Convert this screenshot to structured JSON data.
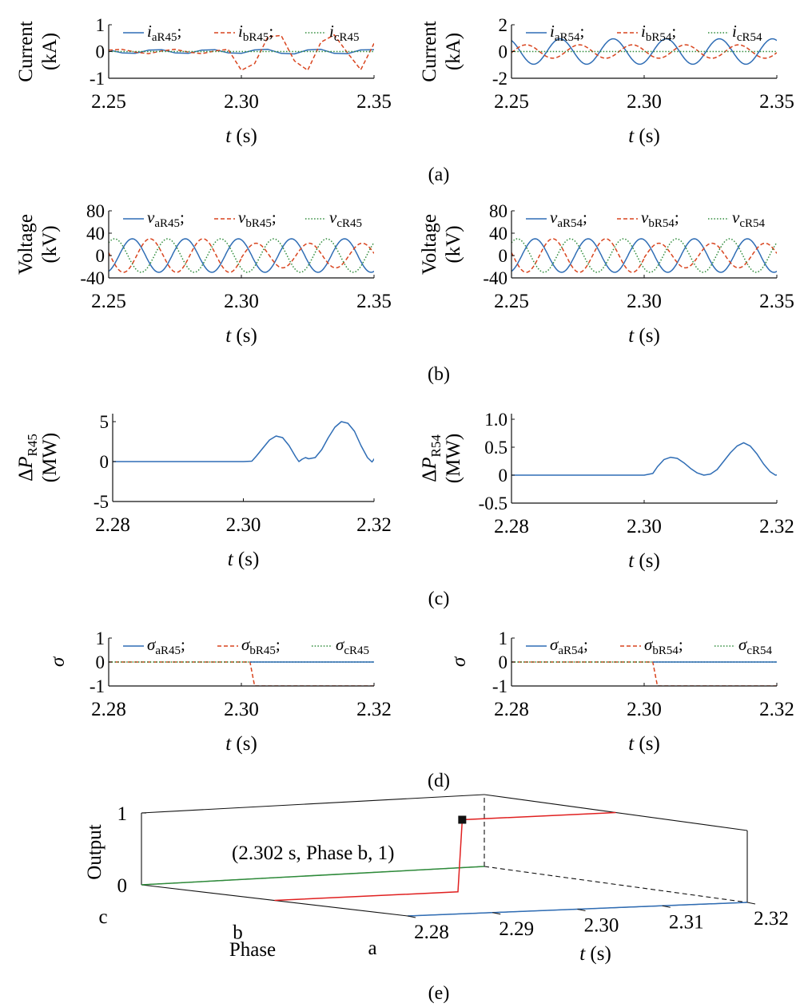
{
  "panel_captions": [
    "(a)",
    "(b)",
    "(c)",
    "(d)",
    "(e)"
  ],
  "colors": {
    "a": "#2f6db5",
    "b": "#d9441e",
    "c": "#2e8b3a",
    "red3d": "#e02020",
    "axis": "#111111"
  },
  "chart_data": [
    {
      "id": "a_left",
      "type": "line",
      "panel": "(a)",
      "ylabel": [
        "Current",
        "(kA)"
      ],
      "xlabel_var": "t",
      "xlabel_unit": "(s)",
      "xlim": [
        2.25,
        2.35
      ],
      "ylim": [
        -1,
        1
      ],
      "xticks": [
        2.25,
        2.3,
        2.35
      ],
      "xtick_labels": [
        "2.25",
        "2.30",
        "2.35"
      ],
      "yticks": [
        1,
        0,
        -1
      ],
      "ytick_labels": [
        "1",
        "0",
        "-1"
      ],
      "legend": [
        {
          "var": "i",
          "sub": "aR45",
          "sep": ";",
          "style": "solid",
          "color": "#2f6db5"
        },
        {
          "var": "i",
          "sub": "bR45",
          "sep": ";",
          "style": "dashed",
          "color": "#d9441e"
        },
        {
          "var": "i",
          "sub": "cR45",
          "sep": "",
          "style": "dotted",
          "color": "#2e8b3a"
        }
      ],
      "series": [
        {
          "phase": "a",
          "style": "solid",
          "color": "#2f6db5",
          "x": [
            2.25,
            2.255,
            2.26,
            2.265,
            2.27,
            2.275,
            2.28,
            2.285,
            2.29,
            2.295,
            2.3,
            2.305,
            2.31,
            2.315,
            2.32,
            2.325,
            2.33,
            2.335,
            2.34,
            2.345,
            2.35
          ],
          "y": [
            0.06,
            -0.05,
            -0.07,
            0.05,
            0.07,
            -0.05,
            -0.07,
            0.05,
            0.07,
            -0.05,
            -0.07,
            0.06,
            0.08,
            -0.07,
            -0.09,
            0.06,
            0.08,
            -0.07,
            -0.08,
            0.06,
            0.07
          ]
        },
        {
          "phase": "b",
          "style": "dashed",
          "color": "#d9441e",
          "x": [
            2.25,
            2.255,
            2.26,
            2.265,
            2.27,
            2.275,
            2.28,
            2.285,
            2.29,
            2.295,
            2.3,
            2.305,
            2.31,
            2.315,
            2.32,
            2.325,
            2.33,
            2.335,
            2.34,
            2.345,
            2.35
          ],
          "y": [
            0.05,
            0.08,
            -0.02,
            -0.08,
            0.02,
            0.08,
            -0.02,
            -0.08,
            0.02,
            0.08,
            -0.7,
            -0.45,
            0.55,
            0.6,
            -0.35,
            -0.7,
            0.35,
            0.62,
            -0.05,
            -0.68,
            0.3
          ]
        },
        {
          "phase": "c",
          "style": "dotted",
          "color": "#2e8b3a",
          "x": [
            2.25,
            2.3,
            2.35
          ],
          "y": [
            0.0,
            0.0,
            0.0
          ]
        }
      ]
    },
    {
      "id": "a_right",
      "type": "line",
      "panel": "(a)",
      "ylabel": [
        "Current",
        "(kA)"
      ],
      "xlabel_var": "t",
      "xlabel_unit": "(s)",
      "xlim": [
        2.25,
        2.35
      ],
      "ylim": [
        -2,
        2
      ],
      "xticks": [
        2.25,
        2.3,
        2.35
      ],
      "xtick_labels": [
        "2.25",
        "2.30",
        "2.35"
      ],
      "yticks": [
        2,
        0,
        -2
      ],
      "ytick_labels": [
        "2",
        "0",
        "-2"
      ],
      "legend": [
        {
          "var": "i",
          "sub": "aR54",
          "sep": ";",
          "style": "solid",
          "color": "#2f6db5"
        },
        {
          "var": "i",
          "sub": "bR54",
          "sep": ";",
          "style": "dashed",
          "color": "#d9441e"
        },
        {
          "var": "i",
          "sub": "cR54",
          "sep": "",
          "style": "dotted",
          "color": "#2e8b3a"
        }
      ],
      "series": [
        {
          "phase": "a",
          "style": "solid",
          "color": "#2f6db5",
          "func": "sine",
          "amp": 0.95,
          "freq": 50,
          "phase_deg": -60,
          "x_start": 2.25,
          "x_end": 2.35
        },
        {
          "phase": "b",
          "style": "dashed",
          "color": "#d9441e",
          "func": "sine",
          "amp": 0.5,
          "freq": 50,
          "phase_deg": 170,
          "x_start": 2.25,
          "x_end": 2.35
        },
        {
          "phase": "c",
          "style": "dotted",
          "color": "#2e8b3a",
          "x": [
            2.25,
            2.35
          ],
          "y": [
            0.0,
            0.0
          ]
        }
      ]
    },
    {
      "id": "b_left",
      "type": "line",
      "panel": "(b)",
      "ylabel": [
        "Voltage",
        "(kV)"
      ],
      "xlabel_var": "t",
      "xlabel_unit": "(s)",
      "xlim": [
        2.25,
        2.35
      ],
      "ylim": [
        -40,
        80
      ],
      "xticks": [
        2.25,
        2.3,
        2.35
      ],
      "xtick_labels": [
        "2.25",
        "2.30",
        "2.35"
      ],
      "yticks": [
        80,
        40,
        0,
        -40
      ],
      "ytick_labels": [
        "80",
        "40",
        "0",
        "-40"
      ],
      "legend": [
        {
          "var": "v",
          "sub": "aR45",
          "sep": ";",
          "style": "solid",
          "color": "#2f6db5"
        },
        {
          "var": "v",
          "sub": "bR45",
          "sep": ";",
          "style": "dashed",
          "color": "#d9441e"
        },
        {
          "var": "v",
          "sub": "cR45",
          "sep": "",
          "style": "dotted",
          "color": "#2e8b3a"
        }
      ],
      "series": [
        {
          "phase": "a",
          "style": "solid",
          "color": "#2f6db5",
          "func": "sine",
          "amp": 30,
          "freq": 50,
          "phase_deg": 110,
          "x_start": 2.25,
          "x_end": 2.35
        },
        {
          "phase": "b",
          "style": "dashed",
          "color": "#d9441e",
          "func": "sine",
          "amp": 30,
          "freq": 50,
          "phase_deg": -10,
          "x_start": 2.25,
          "x_end": 2.3
        },
        {
          "phase": "b",
          "style": "dashed",
          "color": "#d9441e",
          "func": "sine",
          "amp": 22,
          "freq": 50,
          "phase_deg": -10,
          "x_start": 2.3,
          "x_end": 2.35
        },
        {
          "phase": "c",
          "style": "dotted",
          "color": "#2e8b3a",
          "func": "sine",
          "amp": 30,
          "freq": 50,
          "phase_deg": -130,
          "x_start": 2.25,
          "x_end": 2.35
        }
      ]
    },
    {
      "id": "b_right",
      "type": "line",
      "panel": "(b)",
      "ylabel": [
        "Voltage",
        "(kV)"
      ],
      "xlabel_var": "t",
      "xlabel_unit": "(s)",
      "xlim": [
        2.25,
        2.35
      ],
      "ylim": [
        -40,
        80
      ],
      "xticks": [
        2.25,
        2.3,
        2.35
      ],
      "xtick_labels": [
        "2.25",
        "2.30",
        "2.35"
      ],
      "yticks": [
        80,
        40,
        0,
        -40
      ],
      "ytick_labels": [
        "80",
        "40",
        "0",
        "-40"
      ],
      "legend": [
        {
          "var": "v",
          "sub": "aR54",
          "sep": ";",
          "style": "solid",
          "color": "#2f6db5"
        },
        {
          "var": "v",
          "sub": "bR54",
          "sep": ";",
          "style": "dashed",
          "color": "#d9441e"
        },
        {
          "var": "v",
          "sub": "cR54",
          "sep": "",
          "style": "dotted",
          "color": "#2e8b3a"
        }
      ],
      "series": [
        {
          "phase": "a",
          "style": "solid",
          "color": "#2f6db5",
          "func": "sine",
          "amp": 30,
          "freq": 50,
          "phase_deg": 110,
          "x_start": 2.25,
          "x_end": 2.35
        },
        {
          "phase": "b",
          "style": "dashed",
          "color": "#d9441e",
          "func": "sine",
          "amp": 30,
          "freq": 50,
          "phase_deg": -10,
          "x_start": 2.25,
          "x_end": 2.3
        },
        {
          "phase": "b",
          "style": "dashed",
          "color": "#d9441e",
          "func": "sine",
          "amp": 22,
          "freq": 50,
          "phase_deg": -10,
          "x_start": 2.3,
          "x_end": 2.35
        },
        {
          "phase": "c",
          "style": "dotted",
          "color": "#2e8b3a",
          "func": "sine",
          "amp": 30,
          "freq": 50,
          "phase_deg": -130,
          "x_start": 2.25,
          "x_end": 2.35
        }
      ]
    },
    {
      "id": "c_left",
      "type": "line",
      "panel": "(c)",
      "ylabel_delta": "ΔP",
      "ylabel_sub": "R45",
      "ylabel_unit": "(MW)",
      "xlabel_var": "t",
      "xlabel_unit": "(s)",
      "xlim": [
        2.28,
        2.32
      ],
      "ylim": [
        -5,
        6
      ],
      "xticks": [
        2.28,
        2.3,
        2.32
      ],
      "xtick_labels": [
        "2.28",
        "2.30",
        "2.32"
      ],
      "yticks": [
        5,
        0,
        -5
      ],
      "ytick_labels": [
        "5",
        "0",
        "-5"
      ],
      "series": [
        {
          "phase": "a",
          "style": "solid",
          "color": "#2f6db5",
          "x": [
            2.28,
            2.29,
            2.3,
            2.3013,
            2.302,
            2.303,
            2.304,
            2.305,
            2.306,
            2.307,
            2.308,
            2.3085,
            2.309,
            2.3095,
            2.31,
            2.311,
            2.312,
            2.313,
            2.314,
            2.315,
            2.316,
            2.317,
            2.318,
            2.319,
            2.3197,
            2.3205
          ],
          "y": [
            0,
            0,
            0,
            0.05,
            0.7,
            1.7,
            2.7,
            3.2,
            3.0,
            2.0,
            0.6,
            0.0,
            0.3,
            0.5,
            0.35,
            0.5,
            1.5,
            3.0,
            4.3,
            5.0,
            4.8,
            3.8,
            2.0,
            0.5,
            -0.05,
            0.9
          ]
        }
      ]
    },
    {
      "id": "c_right",
      "type": "line",
      "panel": "(c)",
      "ylabel_delta": "ΔP",
      "ylabel_sub": "R54",
      "ylabel_unit": "(MW)",
      "xlabel_var": "t",
      "xlabel_unit": "(s)",
      "xlim": [
        2.28,
        2.32
      ],
      "ylim": [
        -0.5,
        1.1
      ],
      "xticks": [
        2.28,
        2.3,
        2.32
      ],
      "xtick_labels": [
        "2.28",
        "2.30",
        "2.32"
      ],
      "yticks": [
        1.0,
        0.5,
        0,
        -0.5
      ],
      "ytick_labels": [
        "1.0",
        "0.5",
        "0",
        "-0.5"
      ],
      "series": [
        {
          "phase": "a",
          "style": "solid",
          "color": "#2f6db5",
          "x": [
            2.28,
            2.29,
            2.3,
            2.3013,
            2.302,
            2.303,
            2.304,
            2.305,
            2.306,
            2.307,
            2.308,
            2.309,
            2.31,
            2.311,
            2.312,
            2.313,
            2.314,
            2.315,
            2.316,
            2.317,
            2.318,
            2.319,
            2.3198,
            2.3205
          ],
          "y": [
            0,
            0,
            0,
            0.03,
            0.15,
            0.28,
            0.32,
            0.3,
            0.22,
            0.12,
            0.04,
            0.0,
            0.02,
            0.1,
            0.25,
            0.4,
            0.52,
            0.58,
            0.52,
            0.38,
            0.2,
            0.06,
            0.0,
            0.01
          ]
        }
      ]
    },
    {
      "id": "d_left",
      "type": "line",
      "panel": "(d)",
      "ylabel_sym": "σ",
      "xlabel_var": "t",
      "xlabel_unit": "(s)",
      "xlim": [
        2.28,
        2.32
      ],
      "ylim": [
        -1,
        1
      ],
      "xticks": [
        2.28,
        2.3,
        2.32
      ],
      "xtick_labels": [
        "2.28",
        "2.30",
        "2.32"
      ],
      "yticks": [
        1,
        0,
        -1
      ],
      "ytick_labels": [
        "1",
        "0",
        "-1"
      ],
      "legend": [
        {
          "var": "σ",
          "sub": "aR45",
          "sep": ";",
          "style": "solid",
          "color": "#2f6db5"
        },
        {
          "var": "σ",
          "sub": "bR45",
          "sep": ";",
          "style": "dashed",
          "color": "#d9441e"
        },
        {
          "var": "σ",
          "sub": "cR45",
          "sep": "",
          "style": "dotted",
          "color": "#2e8b3a"
        }
      ],
      "series": [
        {
          "phase": "b",
          "style": "dashed",
          "color": "#d9441e",
          "x": [
            2.28,
            2.3013,
            2.302,
            2.32
          ],
          "y": [
            0,
            0,
            -1,
            -1
          ]
        },
        {
          "phase": "c",
          "style": "dotted",
          "color": "#2e8b3a",
          "x": [
            2.28,
            2.32
          ],
          "y": [
            0,
            0
          ]
        },
        {
          "phase": "a",
          "style": "solid",
          "color": "#2f6db5",
          "x": [
            2.3013,
            2.32
          ],
          "y": [
            0,
            0
          ]
        }
      ]
    },
    {
      "id": "d_right",
      "type": "line",
      "panel": "(d)",
      "ylabel_sym": "σ",
      "xlabel_var": "t",
      "xlabel_unit": "(s)",
      "xlim": [
        2.28,
        2.32
      ],
      "ylim": [
        -1,
        1
      ],
      "xticks": [
        2.28,
        2.3,
        2.32
      ],
      "xtick_labels": [
        "2.28",
        "2.30",
        "2.32"
      ],
      "yticks": [
        1,
        0,
        -1
      ],
      "ytick_labels": [
        "1",
        "0",
        "-1"
      ],
      "legend": [
        {
          "var": "σ",
          "sub": "aR54",
          "sep": ";",
          "style": "solid",
          "color": "#2f6db5"
        },
        {
          "var": "σ",
          "sub": "bR54",
          "sep": ";",
          "style": "dashed",
          "color": "#d9441e"
        },
        {
          "var": "σ",
          "sub": "cR54",
          "sep": "",
          "style": "dotted",
          "color": "#2e8b3a"
        }
      ],
      "series": [
        {
          "phase": "b",
          "style": "dashed",
          "color": "#d9441e",
          "x": [
            2.28,
            2.3013,
            2.302,
            2.32
          ],
          "y": [
            0,
            0,
            -1,
            -1
          ]
        },
        {
          "phase": "c",
          "style": "dotted",
          "color": "#2e8b3a",
          "x": [
            2.28,
            2.32
          ],
          "y": [
            0,
            0
          ]
        },
        {
          "phase": "a",
          "style": "solid",
          "color": "#2f6db5",
          "x": [
            2.3013,
            2.32
          ],
          "y": [
            0,
            0
          ]
        }
      ]
    },
    {
      "id": "e_3d",
      "type": "line",
      "panel": "(e)",
      "zlabel": "Output",
      "ylabel": "Phase",
      "xlabel_var": "t",
      "xlabel_unit": "(s)",
      "xlim": [
        2.28,
        2.32
      ],
      "zlim": [
        0,
        1
      ],
      "xticks": [
        2.28,
        2.29,
        2.3,
        2.31,
        2.32
      ],
      "xtick_labels": [
        "2.28",
        "2.29",
        "2.30",
        "2.31",
        "2.32"
      ],
      "phase_labels": [
        "c",
        "b",
        "a"
      ],
      "zticks": [
        1,
        0
      ],
      "ztick_labels": [
        "1",
        "0"
      ],
      "annotation": {
        "text": "(2.302 s, Phase b, 1)",
        "x": 2.302,
        "phase": "b",
        "z": 1
      },
      "series": [
        {
          "phase": "c",
          "color": "#2e8b3a",
          "x": [
            2.28,
            2.32
          ],
          "z": [
            0,
            0
          ]
        },
        {
          "phase": "b",
          "color": "#e02020",
          "x": [
            2.28,
            2.3015,
            2.302,
            2.32
          ],
          "z": [
            0,
            0,
            1,
            1
          ]
        },
        {
          "phase": "a",
          "color": "#2f6db5",
          "x": [
            2.28,
            2.32
          ],
          "z": [
            0,
            0
          ]
        }
      ]
    }
  ]
}
